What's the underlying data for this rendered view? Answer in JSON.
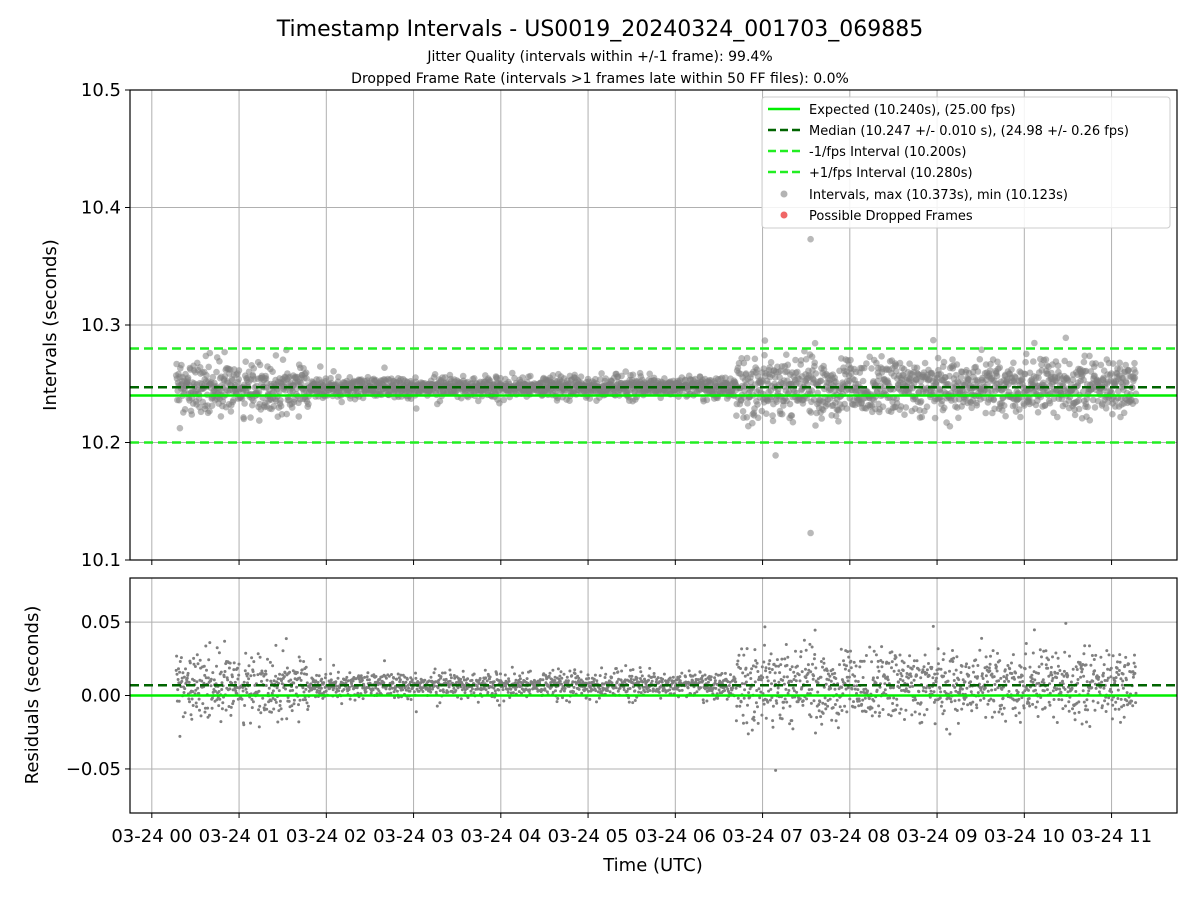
{
  "figure": {
    "title": "Timestamp Intervals - US0019_20240324_001703_069885",
    "subtitle_1": "Jitter Quality (intervals within +/-1 frame): 99.4%",
    "subtitle_2": "Dropped Frame Rate (intervals >1 frames late within 50 FF files): 0.0%"
  },
  "colors": {
    "expected": "#00ee00",
    "median": "#006400",
    "fps_bounds": "#22ee22",
    "points": "#808080",
    "dropped": "#ee5555",
    "grid": "#b0b0b0"
  },
  "chart_data": [
    {
      "type": "scatter",
      "panel": "top",
      "ylabel": "Intervals (seconds)",
      "xlabel": "",
      "ylim": [
        10.1,
        10.5
      ],
      "yticks": [
        "10.1",
        "10.2",
        "10.3",
        "10.4",
        "10.5"
      ],
      "xlim_hours": [
        -0.25,
        11.75
      ],
      "grid": true,
      "legend_position": "top-right",
      "lines": [
        {
          "name": "Expected (10.240s), (25.00 fps)",
          "y": 10.24,
          "style": "solid",
          "color": "#00ee00"
        },
        {
          "name": "Median (10.247 +/- 0.010 s), (24.98 +/- 0.26 fps)",
          "y": 10.247,
          "style": "dashed",
          "color": "#006400"
        },
        {
          "name": "-1/fps Interval (10.200s)",
          "y": 10.2,
          "style": "dashed",
          "color": "#22ee22"
        },
        {
          "name": "+1/fps Interval (10.280s)",
          "y": 10.28,
          "style": "dashed",
          "color": "#22ee22"
        }
      ],
      "series": [
        {
          "name": "Intervals, max (10.373s), min (10.123s)",
          "color": "#808080",
          "max": 10.373,
          "min": 10.123,
          "x_range_hours": [
            0.28,
            11.28
          ],
          "center": 10.247
        },
        {
          "name": "Possible Dropped Frames",
          "color": "#ee5555",
          "values": []
        }
      ],
      "outliers": [
        {
          "x_hours": 7.55,
          "y": 10.373
        },
        {
          "x_hours": 7.55,
          "y": 10.123
        },
        {
          "x_hours": 7.15,
          "y": 10.189
        }
      ]
    },
    {
      "type": "scatter",
      "panel": "bottom",
      "ylabel": "Residuals (seconds)",
      "xlabel": "Time (UTC)",
      "ylim": [
        -0.08,
        0.08
      ],
      "yticks": [
        "−0.05",
        "0.00",
        "0.05"
      ],
      "ytick_values": [
        -0.05,
        0.0,
        0.05
      ],
      "xlim_hours": [
        -0.25,
        11.75
      ],
      "xticks": [
        "03-24 00",
        "03-24 01",
        "03-24 02",
        "03-24 03",
        "03-24 04",
        "03-24 05",
        "03-24 06",
        "03-24 07",
        "03-24 08",
        "03-24 09",
        "03-24 10",
        "03-24 11"
      ],
      "xtick_hours": [
        0,
        1,
        2,
        3,
        4,
        5,
        6,
        7,
        8,
        9,
        10,
        11
      ],
      "grid": true,
      "lines": [
        {
          "y": 0.0,
          "style": "solid",
          "color": "#00ee00"
        },
        {
          "y": 0.007,
          "style": "dashed",
          "color": "#006400"
        }
      ],
      "series": [
        {
          "name": "Residuals",
          "color": "#808080",
          "x_range_hours": [
            0.28,
            11.28
          ],
          "center": 0.007
        }
      ]
    }
  ]
}
